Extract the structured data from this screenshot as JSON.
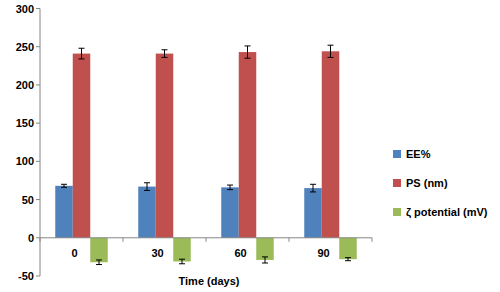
{
  "chart_data": {
    "type": "bar",
    "x_label": "Time (days)",
    "categories": [
      "0",
      "30",
      "60",
      "90"
    ],
    "series": [
      {
        "name": "EE%",
        "color": "#4f81bd",
        "values": [
          68,
          67,
          66,
          65
        ],
        "errors": [
          2,
          5,
          3,
          5
        ]
      },
      {
        "name": "PS (nm)",
        "color": "#c0504d",
        "values": [
          241,
          241,
          243,
          244
        ],
        "errors": [
          7,
          5,
          8,
          8
        ]
      },
      {
        "name": "ζ potential (mV)",
        "color": "#9bbb59",
        "values": [
          -32,
          -31,
          -29,
          -28
        ],
        "errors": [
          3,
          3,
          4,
          2
        ]
      }
    ],
    "ylim": [
      -50,
      300
    ],
    "yticks": [
      -50,
      0,
      50,
      100,
      150,
      200,
      250,
      300
    ],
    "grid": false,
    "legend": "right"
  }
}
